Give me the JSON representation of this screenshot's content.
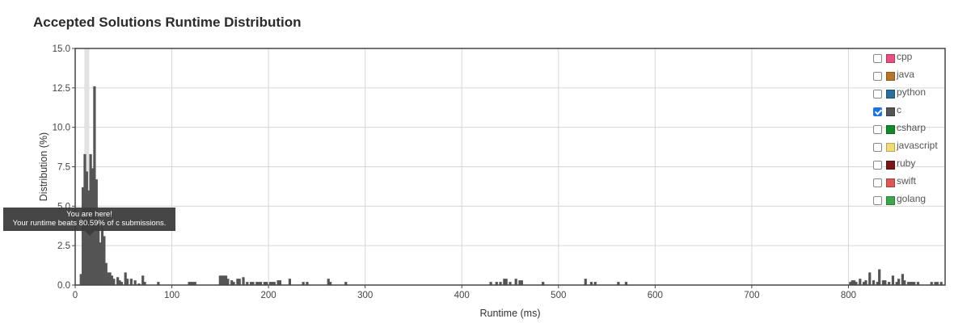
{
  "chart_data": {
    "type": "bar",
    "title": "Accepted Solutions Runtime Distribution",
    "xlabel": "Runtime (ms)",
    "ylabel": "Distribution (%)",
    "xlim": [
      0,
      900
    ],
    "ylim": [
      0,
      15
    ],
    "xticks": [
      0,
      100,
      200,
      300,
      400,
      500,
      600,
      700,
      800
    ],
    "yticks": [
      0.0,
      2.5,
      5.0,
      7.5,
      10.0,
      12.5,
      15.0
    ],
    "xtick_labels": [
      "0",
      "100",
      "200",
      "300",
      "400",
      "500",
      "600",
      "700",
      "800"
    ],
    "ytick_labels": [
      "0.0",
      "2.5",
      "5.0",
      "7.5",
      "10.0",
      "12.5",
      "15.0"
    ],
    "grid": true,
    "legend_position": "top-right",
    "highlight_x": 12,
    "series": [
      {
        "name": "c",
        "color": "#555555",
        "points": [
          [
            6,
            0.7
          ],
          [
            8,
            6.2
          ],
          [
            10,
            8.3
          ],
          [
            12,
            7.2
          ],
          [
            14,
            6.0
          ],
          [
            16,
            8.3
          ],
          [
            18,
            7.4
          ],
          [
            20,
            12.6
          ],
          [
            22,
            6.7
          ],
          [
            24,
            3.8
          ],
          [
            26,
            2.7
          ],
          [
            28,
            3.7
          ],
          [
            30,
            3.1
          ],
          [
            32,
            1.4
          ],
          [
            34,
            0.8
          ],
          [
            36,
            0.8
          ],
          [
            38,
            0.6
          ],
          [
            40,
            0.4
          ],
          [
            44,
            0.5
          ],
          [
            46,
            0.3
          ],
          [
            48,
            0.2
          ],
          [
            52,
            0.8
          ],
          [
            54,
            0.4
          ],
          [
            58,
            0.4
          ],
          [
            62,
            0.3
          ],
          [
            66,
            0.1
          ],
          [
            70,
            0.6
          ],
          [
            72,
            0.2
          ],
          [
            86,
            0.2
          ],
          [
            118,
            0.2
          ],
          [
            120,
            0.2
          ],
          [
            122,
            0.2
          ],
          [
            124,
            0.2
          ],
          [
            150,
            0.6
          ],
          [
            152,
            0.6
          ],
          [
            154,
            0.6
          ],
          [
            156,
            0.6
          ],
          [
            158,
            0.4
          ],
          [
            162,
            0.3
          ],
          [
            164,
            0.2
          ],
          [
            168,
            0.4
          ],
          [
            170,
            0.4
          ],
          [
            174,
            0.5
          ],
          [
            178,
            0.2
          ],
          [
            182,
            0.2
          ],
          [
            184,
            0.2
          ],
          [
            188,
            0.2
          ],
          [
            190,
            0.2
          ],
          [
            192,
            0.2
          ],
          [
            196,
            0.2
          ],
          [
            198,
            0.2
          ],
          [
            202,
            0.2
          ],
          [
            204,
            0.2
          ],
          [
            206,
            0.2
          ],
          [
            210,
            0.3
          ],
          [
            212,
            0.3
          ],
          [
            222,
            0.4
          ],
          [
            236,
            0.2
          ],
          [
            240,
            0.2
          ],
          [
            262,
            0.4
          ],
          [
            264,
            0.2
          ],
          [
            280,
            0.2
          ],
          [
            430,
            0.2
          ],
          [
            436,
            0.2
          ],
          [
            440,
            0.2
          ],
          [
            444,
            0.4
          ],
          [
            446,
            0.4
          ],
          [
            450,
            0.2
          ],
          [
            456,
            0.4
          ],
          [
            460,
            0.3
          ],
          [
            462,
            0.3
          ],
          [
            484,
            0.2
          ],
          [
            528,
            0.4
          ],
          [
            534,
            0.2
          ],
          [
            538,
            0.2
          ],
          [
            562,
            0.2
          ],
          [
            570,
            0.2
          ],
          [
            802,
            0.2
          ],
          [
            804,
            0.3
          ],
          [
            806,
            0.3
          ],
          [
            808,
            0.2
          ],
          [
            812,
            0.4
          ],
          [
            816,
            0.2
          ],
          [
            818,
            0.3
          ],
          [
            822,
            0.8
          ],
          [
            826,
            0.3
          ],
          [
            830,
            0.2
          ],
          [
            832,
            1.0
          ],
          [
            836,
            0.3
          ],
          [
            838,
            0.3
          ],
          [
            842,
            0.2
          ],
          [
            846,
            0.6
          ],
          [
            850,
            0.2
          ],
          [
            852,
            0.4
          ],
          [
            856,
            0.7
          ],
          [
            858,
            0.3
          ],
          [
            862,
            0.2
          ],
          [
            864,
            0.2
          ],
          [
            866,
            0.2
          ],
          [
            868,
            0.2
          ],
          [
            872,
            0.2
          ],
          [
            886,
            0.2
          ],
          [
            890,
            0.2
          ],
          [
            892,
            0.2
          ],
          [
            896,
            0.2
          ]
        ]
      }
    ]
  },
  "legend": {
    "items": [
      {
        "label": "cpp",
        "color": "#e94f7f",
        "checked": false
      },
      {
        "label": "java",
        "color": "#b8742a",
        "checked": false
      },
      {
        "label": "python",
        "color": "#2c6e9e",
        "checked": false
      },
      {
        "label": "c",
        "color": "#555555",
        "checked": true
      },
      {
        "label": "csharp",
        "color": "#128a2c",
        "checked": false
      },
      {
        "label": "javascript",
        "color": "#f3db74",
        "checked": false
      },
      {
        "label": "ruby",
        "color": "#7a1616",
        "checked": false
      },
      {
        "label": "swift",
        "color": "#e05757",
        "checked": false
      },
      {
        "label": "golang",
        "color": "#3ca84b",
        "checked": false
      }
    ]
  },
  "tooltip": {
    "line1": "You are here!",
    "line2": "Your runtime beats 80.59% of c submissions."
  }
}
